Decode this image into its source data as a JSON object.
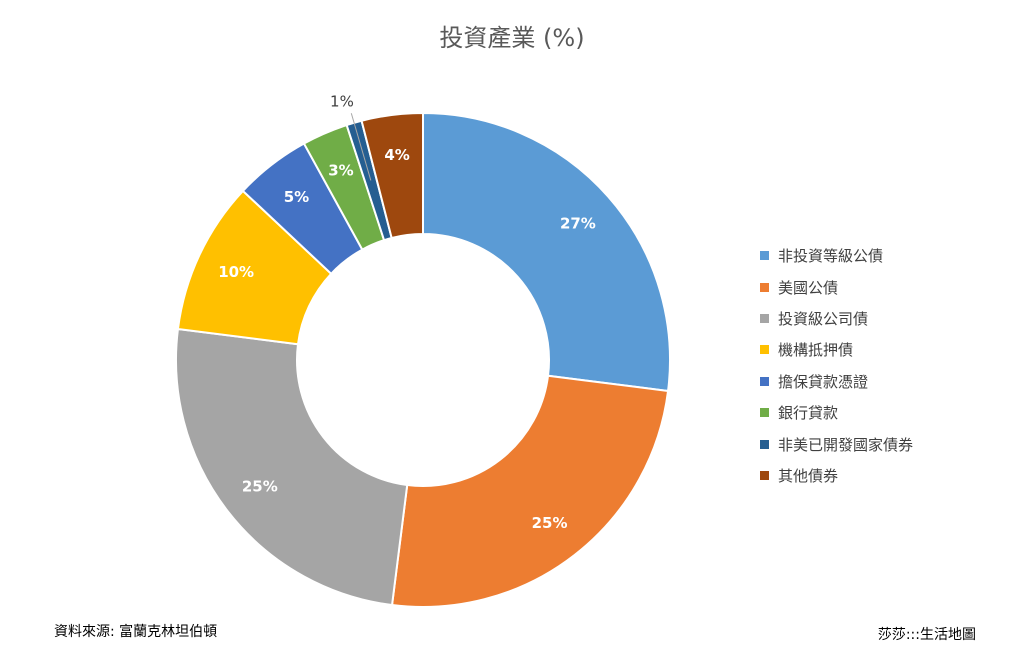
{
  "chart_data": {
    "type": "pie",
    "variant": "donut",
    "title": "投資產業 (%)",
    "categories": [
      "非投資等級公債",
      "美國公債",
      "投資級公司債",
      "機構抵押債",
      "擔保貸款憑證",
      "銀行貸款",
      "非美已開發國家債券",
      "其他債券"
    ],
    "values": [
      27,
      25,
      25,
      10,
      5,
      3,
      1,
      4
    ],
    "labels": [
      "27%",
      "25%",
      "25%",
      "10%",
      "5%",
      "3%",
      "1%",
      "4%"
    ],
    "colors": [
      "#5B9BD5",
      "#ED7D31",
      "#A5A5A5",
      "#FFC000",
      "#4472C4",
      "#70AD47",
      "#255E91",
      "#9E480E"
    ],
    "legend_position": "right"
  },
  "footer": {
    "source": "資料來源: 富蘭克林坦伯頓",
    "credit": "莎莎:::生活地圖"
  }
}
